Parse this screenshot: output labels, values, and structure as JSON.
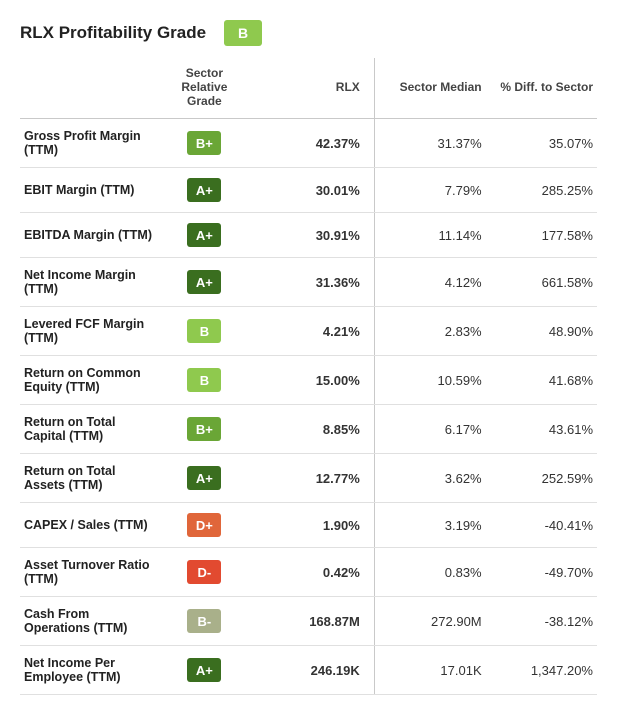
{
  "header": {
    "title": "RLX Profitability Grade",
    "overall_grade": "B",
    "overall_grade_color": "#8fc94e"
  },
  "columns": {
    "metric": "",
    "grade": "Sector Relative Grade",
    "rlx": "RLX",
    "median": "Sector Median",
    "diff": "% Diff. to Sector"
  },
  "grade_colors": {
    "A+": "#3a6e1f",
    "A": "#3a6e1f",
    "A-": "#4f8a2b",
    "B+": "#6aa636",
    "B": "#8fc94e",
    "B-": "#a9b08a",
    "C+": "#d8a33a",
    "C": "#d8a33a",
    "C-": "#d8843a",
    "D+": "#e0663a",
    "D": "#e0553a",
    "D-": "#e24a30",
    "F": "#c0392b"
  },
  "rows": [
    {
      "metric": "Gross Profit Margin (TTM)",
      "grade": "B+",
      "rlx": "42.37%",
      "median": "31.37%",
      "diff": "35.07%"
    },
    {
      "metric": "EBIT Margin (TTM)",
      "grade": "A+",
      "rlx": "30.01%",
      "median": "7.79%",
      "diff": "285.25%"
    },
    {
      "metric": "EBITDA Margin (TTM)",
      "grade": "A+",
      "rlx": "30.91%",
      "median": "11.14%",
      "diff": "177.58%"
    },
    {
      "metric": "Net Income Margin (TTM)",
      "grade": "A+",
      "rlx": "31.36%",
      "median": "4.12%",
      "diff": "661.58%"
    },
    {
      "metric": "Levered FCF Margin (TTM)",
      "grade": "B",
      "rlx": "4.21%",
      "median": "2.83%",
      "diff": "48.90%"
    },
    {
      "metric": "Return on Common Equity (TTM)",
      "grade": "B",
      "rlx": "15.00%",
      "median": "10.59%",
      "diff": "41.68%"
    },
    {
      "metric": "Return on Total Capital (TTM)",
      "grade": "B+",
      "rlx": "8.85%",
      "median": "6.17%",
      "diff": "43.61%"
    },
    {
      "metric": "Return on Total Assets (TTM)",
      "grade": "A+",
      "rlx": "12.77%",
      "median": "3.62%",
      "diff": "252.59%"
    },
    {
      "metric": "CAPEX / Sales (TTM)",
      "grade": "D+",
      "rlx": "1.90%",
      "median": "3.19%",
      "diff": "-40.41%"
    },
    {
      "metric": "Asset Turnover Ratio (TTM)",
      "grade": "D-",
      "rlx": "0.42%",
      "median": "0.83%",
      "diff": "-49.70%"
    },
    {
      "metric": "Cash From Operations (TTM)",
      "grade": "B-",
      "rlx": "168.87M",
      "median": "272.90M",
      "diff": "-38.12%"
    },
    {
      "metric": "Net Income Per Employee (TTM)",
      "grade": "A+",
      "rlx": "246.19K",
      "median": "17.01K",
      "diff": "1,347.20%"
    }
  ]
}
